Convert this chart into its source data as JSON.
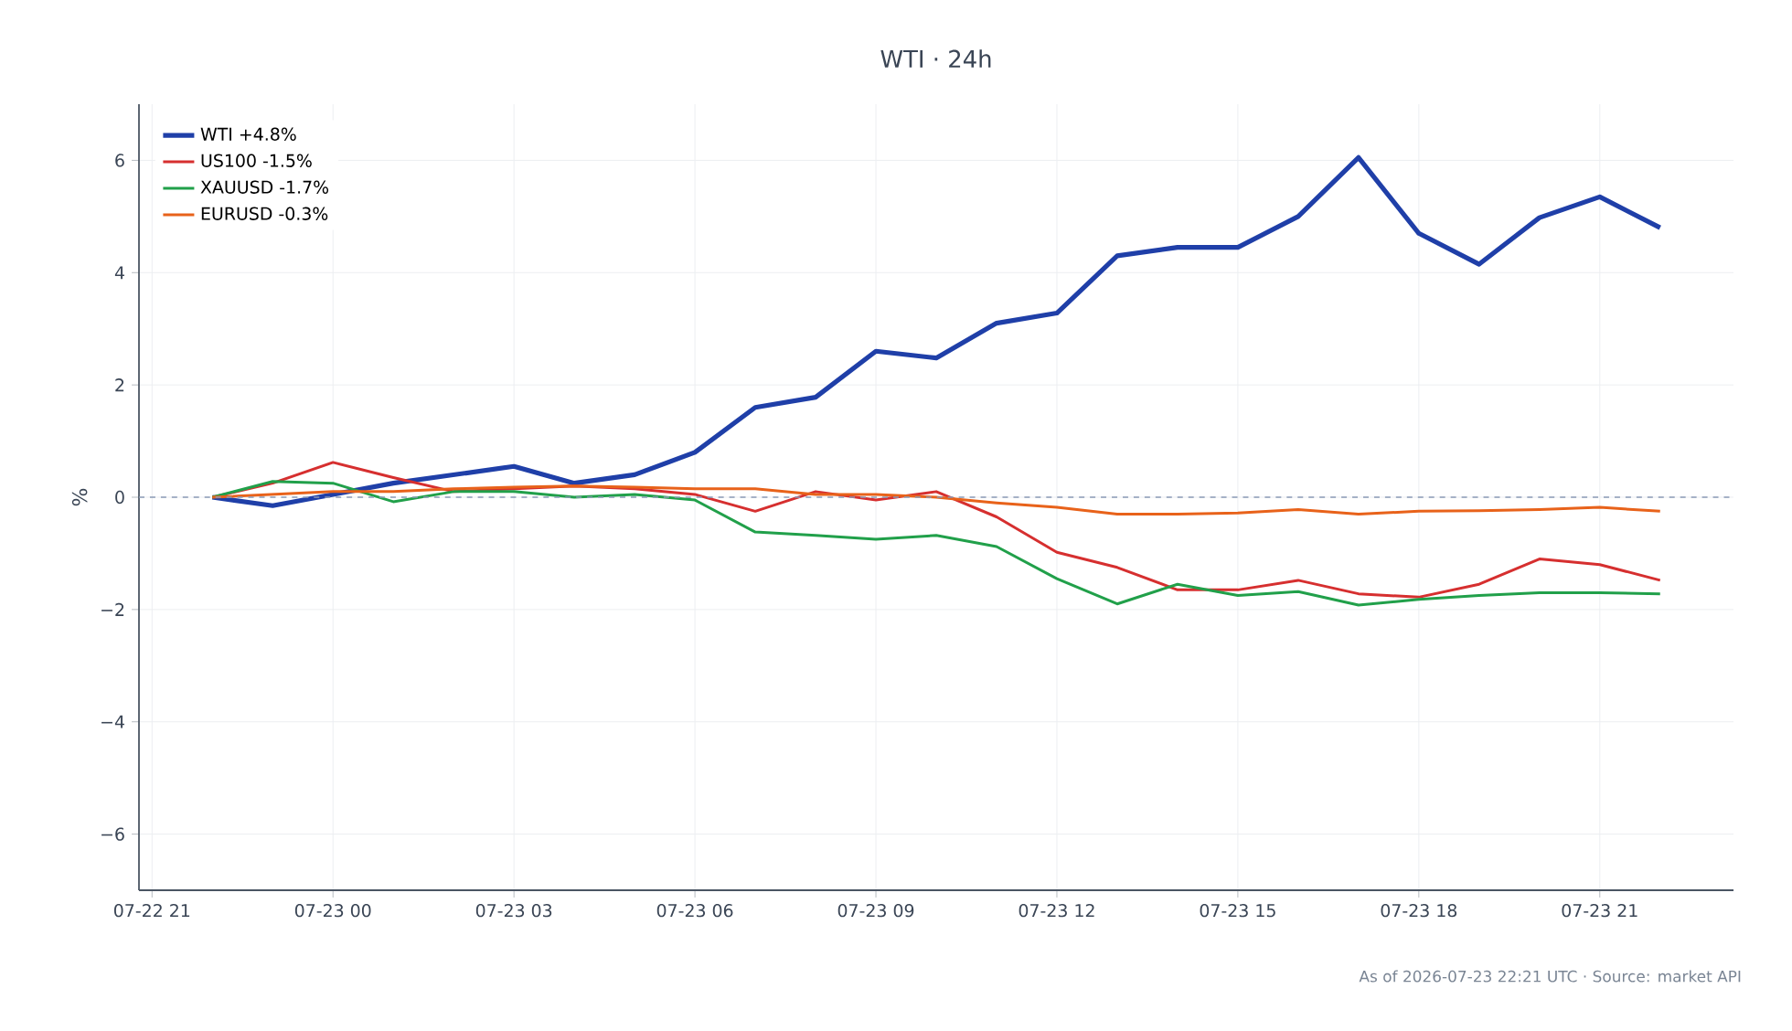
{
  "chart_data": {
    "type": "line",
    "title": "WTI · 24h",
    "ylabel": "%",
    "x": [
      "2026-07-22T22:00",
      "2026-07-22T23:00",
      "2026-07-23T00:00",
      "2026-07-23T01:00",
      "2026-07-23T02:00",
      "2026-07-23T03:00",
      "2026-07-23T04:00",
      "2026-07-23T05:00",
      "2026-07-23T06:00",
      "2026-07-23T07:00",
      "2026-07-23T08:00",
      "2026-07-23T09:00",
      "2026-07-23T10:00",
      "2026-07-23T11:00",
      "2026-07-23T12:00",
      "2026-07-23T13:00",
      "2026-07-23T14:00",
      "2026-07-23T15:00",
      "2026-07-23T16:00",
      "2026-07-23T17:00",
      "2026-07-23T18:00",
      "2026-07-23T19:00",
      "2026-07-23T20:00",
      "2026-07-23T21:00",
      "2026-07-23T22:00"
    ],
    "series": [
      {
        "name": "WTI +4.8%",
        "color": "#1f3fa8",
        "values": [
          0,
          -0.15,
          0.05,
          0.25,
          0.4,
          0.55,
          0.25,
          0.4,
          0.8,
          1.6,
          1.78,
          2.6,
          2.48,
          3.1,
          3.28,
          4.3,
          4.45,
          4.45,
          5.0,
          6.05,
          4.7,
          4.15,
          4.98,
          5.35,
          4.8
        ]
      },
      {
        "name": "US100 -1.5%",
        "color": "#d62f2f",
        "values": [
          0,
          0.25,
          0.62,
          0.35,
          0.1,
          0.15,
          0.2,
          0.15,
          0.05,
          -0.25,
          0.1,
          -0.05,
          0.1,
          -0.35,
          -0.98,
          -1.25,
          -1.65,
          -1.65,
          -1.48,
          -1.72,
          -1.78,
          -1.55,
          -1.1,
          -1.2,
          -1.48
        ]
      },
      {
        "name": "XAUUSD -1.7%",
        "color": "#21a04a",
        "values": [
          0,
          0.28,
          0.25,
          -0.08,
          0.1,
          0.1,
          0.0,
          0.05,
          -0.05,
          -0.62,
          -0.68,
          -0.75,
          -0.68,
          -0.88,
          -1.45,
          -1.9,
          -1.55,
          -1.75,
          -1.68,
          -1.92,
          -1.82,
          -1.75,
          -1.7,
          -1.7,
          -1.72
        ]
      },
      {
        "name": "EURUSD -0.3%",
        "color": "#e8621a",
        "values": [
          0,
          0.05,
          0.1,
          0.1,
          0.15,
          0.18,
          0.2,
          0.18,
          0.15,
          0.15,
          0.05,
          0.05,
          0.0,
          -0.1,
          -0.18,
          -0.3,
          -0.3,
          -0.28,
          -0.22,
          -0.3,
          -0.25,
          -0.24,
          -0.22,
          -0.18,
          -0.25
        ]
      }
    ],
    "xlim": [
      "2026-07-22T20:47",
      "2026-07-23T23:13"
    ],
    "xticks": [
      {
        "value": "2026-07-22T21:00",
        "label": "07-22 21"
      },
      {
        "value": "2026-07-23T00:00",
        "label": "07-23 00"
      },
      {
        "value": "2026-07-23T03:00",
        "label": "07-23 03"
      },
      {
        "value": "2026-07-23T06:00",
        "label": "07-23 06"
      },
      {
        "value": "2026-07-23T09:00",
        "label": "07-23 09"
      },
      {
        "value": "2026-07-23T12:00",
        "label": "07-23 12"
      },
      {
        "value": "2026-07-23T15:00",
        "label": "07-23 15"
      },
      {
        "value": "2026-07-23T18:00",
        "label": "07-23 18"
      },
      {
        "value": "2026-07-23T21:00",
        "label": "07-23 21"
      }
    ],
    "ylim": [
      -7,
      7
    ],
    "yticks": [
      {
        "value": -6,
        "label": "−6"
      },
      {
        "value": -4,
        "label": "−4"
      },
      {
        "value": -2,
        "label": "−2"
      },
      0,
      2,
      4,
      6
    ],
    "ref_lines": [
      {
        "axis": "y",
        "value": 0,
        "color": "#8a9ab5",
        "line_style": "dashed"
      }
    ],
    "grid": true,
    "legend": "top left",
    "marker": "none",
    "line_style": "solid",
    "annotations": [
      "As of 2026-07-23 22:21 UTC · Source: market API"
    ]
  }
}
